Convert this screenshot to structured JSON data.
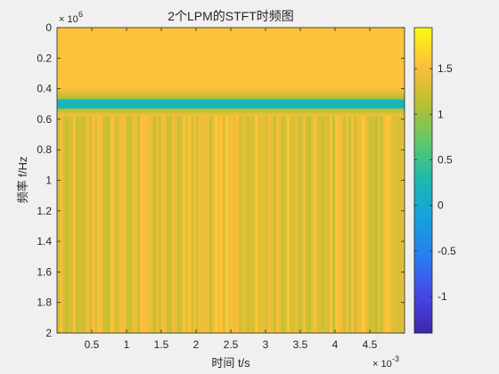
{
  "chart_data": {
    "type": "heatmap",
    "title": "2个LPM的STFT时频图",
    "xlabel": "时间 t/s",
    "ylabel": "频率 f/Hz",
    "x_exponent_label": "× 10",
    "x_exponent_power": "-3",
    "y_exponent_label": "× 10",
    "y_exponent_power": "6",
    "xlim": [
      0,
      0.005
    ],
    "ylim": [
      0,
      2000000
    ],
    "y_direction": "reversed",
    "x_ticks": [
      0.5,
      1,
      1.5,
      2,
      2.5,
      3,
      3.5,
      4,
      4.5
    ],
    "x_tick_labels": [
      "0.5",
      "1",
      "1.5",
      "2",
      "2.5",
      "3",
      "3.5",
      "4",
      "4.5"
    ],
    "y_ticks": [
      0,
      0.2,
      0.4,
      0.6,
      0.8,
      1,
      1.2,
      1.4,
      1.6,
      1.8,
      2
    ],
    "y_tick_labels": [
      "0",
      "0.2",
      "0.4",
      "0.6",
      "0.8",
      "1",
      "1.2",
      "1.4",
      "1.6",
      "1.8",
      "2"
    ],
    "colorbar": {
      "colormap": "parula",
      "range": [
        -1.4,
        1.95
      ],
      "ticks": [
        -1,
        -0.5,
        0,
        0.5,
        1,
        1.5
      ],
      "tick_labels": [
        "-1",
        "-0.5",
        "0",
        "0.5",
        "1",
        "1.5"
      ]
    },
    "regions": [
      {
        "freq_range": [
          0,
          0.4
        ],
        "level": 1.55,
        "note": "uniform orange band"
      },
      {
        "freq_range": [
          0.4,
          0.47
        ],
        "level_from": 1.55,
        "level_to": 1.0
      },
      {
        "freq_range": [
          0.47,
          0.53
        ],
        "level": 0.2,
        "note": "blue-green notch centered near 0.51"
      },
      {
        "freq_range": [
          0.53,
          0.58
        ],
        "level_from": 1.0,
        "level_to": 1.5
      },
      {
        "freq_range": [
          0.58,
          2.0
        ],
        "level": 1.6,
        "level_variation": 0.45,
        "note": "noisy orange with green vertical streaks"
      }
    ]
  }
}
